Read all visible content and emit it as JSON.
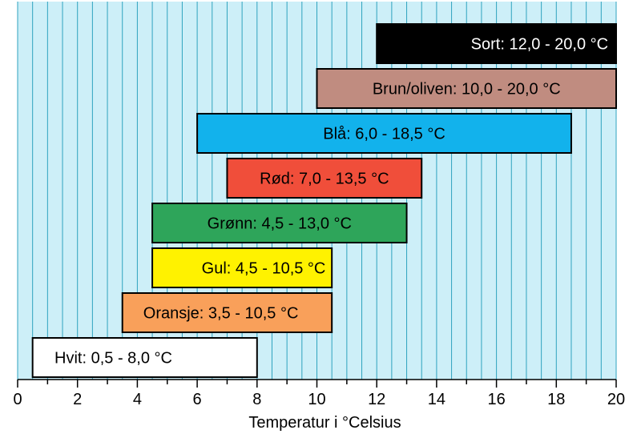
{
  "chart_data": {
    "type": "bar",
    "orientation": "horizontal",
    "title": "",
    "xlabel": "Temperatur i °Celsius",
    "ylabel": "",
    "xlim": [
      0,
      20
    ],
    "xticks": [
      "0",
      "2",
      "4",
      "6",
      "8",
      "10",
      "12",
      "14",
      "16",
      "18",
      "20"
    ],
    "grid": true,
    "background_color": "#CDEFF8",
    "grid_color": "#2FA3BF",
    "bars": [
      {
        "label": "Sort: 12,0 - 20,0 °C",
        "start": 12.0,
        "end": 20.0,
        "color": "#000000",
        "text_color": "#FFFFFF"
      },
      {
        "label": "Brun/oliven: 10,0 - 20,0 °C",
        "start": 10.0,
        "end": 20.0,
        "color": "#C08C80",
        "text_color": "#000000"
      },
      {
        "label": "Blå: 6,0 - 18,5 °C",
        "start": 6.0,
        "end": 18.5,
        "color": "#12B2EC",
        "text_color": "#000000"
      },
      {
        "label": "Rød: 7,0 - 13,5 °C",
        "start": 7.0,
        "end": 13.5,
        "color": "#F04E3A",
        "text_color": "#000000"
      },
      {
        "label": "Grønn: 4,5 - 13,0 °C",
        "start": 4.5,
        "end": 13.0,
        "color": "#2EA55A",
        "text_color": "#000000"
      },
      {
        "label": "Gul: 4,5 - 10,5 °C",
        "start": 4.5,
        "end": 10.5,
        "color": "#FFF200",
        "text_color": "#000000"
      },
      {
        "label": "Oransje: 3,5 - 10,5 °C",
        "start": 3.5,
        "end": 10.5,
        "color": "#F9A05A",
        "text_color": "#000000"
      },
      {
        "label": "Hvit: 0,5 - 8,0 °C",
        "start": 0.5,
        "end": 8.0,
        "color": "#FFFFFF",
        "text_color": "#000000"
      }
    ]
  }
}
